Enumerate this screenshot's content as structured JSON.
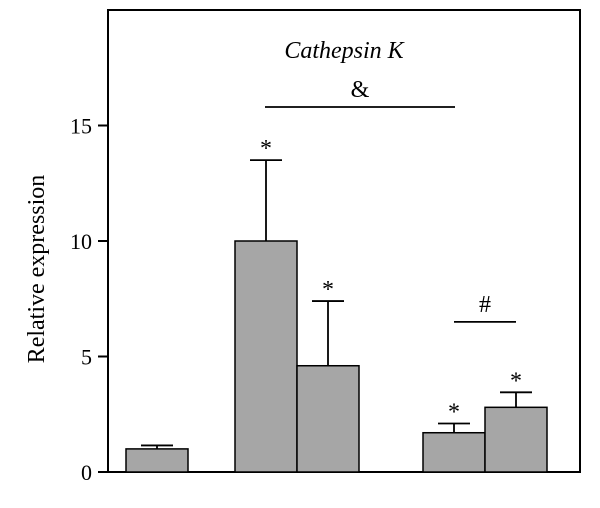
{
  "chart_data": {
    "type": "bar",
    "title": "Cathepsin K",
    "xlabel": "",
    "ylabel": "Relative expression",
    "ylim": [
      0,
      20
    ],
    "yticks": [
      0,
      5,
      10,
      15
    ],
    "groups": [
      {
        "bars": [
          {
            "value": 1.0,
            "error": 0.15,
            "marker": ""
          }
        ]
      },
      {
        "bars": [
          {
            "value": 10.0,
            "error": 3.5,
            "marker": "*"
          },
          {
            "value": 4.6,
            "error": 2.8,
            "marker": "*"
          }
        ]
      },
      {
        "bars": [
          {
            "value": 1.7,
            "error": 0.4,
            "marker": "*"
          },
          {
            "value": 2.8,
            "error": 0.65,
            "marker": "*"
          }
        ]
      }
    ],
    "brackets": [
      {
        "label": "&",
        "y": 15.8,
        "from_group": 1,
        "to_group": 2
      },
      {
        "label": "#",
        "y": 6.5,
        "from": [
          2,
          0
        ],
        "to": [
          2,
          1
        ]
      }
    ],
    "bar_color": "#a6a6a6",
    "grid": false
  }
}
